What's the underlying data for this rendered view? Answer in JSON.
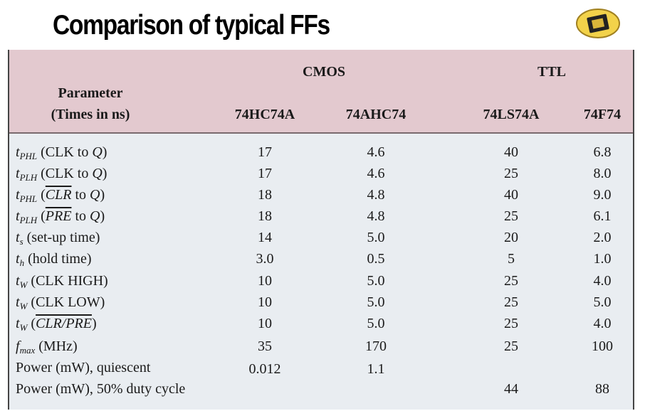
{
  "title": "Comparison of typical FFs",
  "table": {
    "group_headers": [
      {
        "label": "CMOS",
        "span": 2
      },
      {
        "label": "TTL",
        "span": 2
      }
    ],
    "parameter_header": [
      "Parameter",
      "(Times in ns)"
    ],
    "columns": [
      "74HC74A",
      "74AHC74",
      "74LS74A",
      "74F74"
    ],
    "rows": [
      {
        "label": [
          {
            "t": "t",
            "style": "italic"
          },
          {
            "t": "PHL",
            "style": "sub"
          },
          {
            "t": " (CLK to "
          },
          {
            "t": "Q",
            "style": "italic"
          },
          {
            "t": ")"
          }
        ],
        "cells": [
          "17",
          "4.6",
          "40",
          "6.8"
        ]
      },
      {
        "label": [
          {
            "t": "t",
            "style": "italic"
          },
          {
            "t": "PLH",
            "style": "sub"
          },
          {
            "t": " (CLK to "
          },
          {
            "t": "Q",
            "style": "italic"
          },
          {
            "t": ")"
          }
        ],
        "cells": [
          "17",
          "4.6",
          "25",
          "8.0"
        ]
      },
      {
        "label": [
          {
            "t": "t",
            "style": "italic"
          },
          {
            "t": "PHL",
            "style": "sub"
          },
          {
            "t": " ("
          },
          {
            "t": "CLR",
            "style": "over"
          },
          {
            "t": " to "
          },
          {
            "t": "Q",
            "style": "italic"
          },
          {
            "t": ")"
          }
        ],
        "cells": [
          "18",
          "4.8",
          "40",
          "9.0"
        ]
      },
      {
        "label": [
          {
            "t": "t",
            "style": "italic"
          },
          {
            "t": "PLH",
            "style": "sub"
          },
          {
            "t": " ("
          },
          {
            "t": "PRE",
            "style": "over"
          },
          {
            "t": " to "
          },
          {
            "t": "Q",
            "style": "italic"
          },
          {
            "t": ")"
          }
        ],
        "cells": [
          "18",
          "4.8",
          "25",
          "6.1"
        ]
      },
      {
        "label": [
          {
            "t": "t",
            "style": "italic"
          },
          {
            "t": "s",
            "style": "sub"
          },
          {
            "t": " (set-up time)"
          }
        ],
        "cells": [
          "14",
          "5.0",
          "20",
          "2.0"
        ]
      },
      {
        "label": [
          {
            "t": "t",
            "style": "italic"
          },
          {
            "t": "h",
            "style": "sub"
          },
          {
            "t": " (hold time)"
          }
        ],
        "cells": [
          "3.0",
          "0.5",
          "5",
          "1.0"
        ]
      },
      {
        "label": [
          {
            "t": "t",
            "style": "italic"
          },
          {
            "t": "W",
            "style": "sub"
          },
          {
            "t": " (CLK HIGH)"
          }
        ],
        "cells": [
          "10",
          "5.0",
          "25",
          "4.0"
        ]
      },
      {
        "label": [
          {
            "t": "t",
            "style": "italic"
          },
          {
            "t": "W",
            "style": "sub"
          },
          {
            "t": " (CLK LOW)"
          }
        ],
        "cells": [
          "10",
          "5.0",
          "25",
          "5.0"
        ]
      },
      {
        "label": [
          {
            "t": "t",
            "style": "italic"
          },
          {
            "t": "W",
            "style": "sub"
          },
          {
            "t": " ("
          },
          {
            "t": "CLR/PRE",
            "style": "over"
          },
          {
            "t": ")"
          }
        ],
        "cells": [
          "10",
          "5.0",
          "25",
          "4.0"
        ]
      },
      {
        "label": [
          {
            "t": "f",
            "style": "italic"
          },
          {
            "t": "max",
            "style": "sub"
          },
          {
            "t": " (MHz)"
          }
        ],
        "cells": [
          "35",
          "170",
          "25",
          "100"
        ]
      },
      {
        "label": [
          {
            "t": "Power (mW), quiescent"
          }
        ],
        "cells": [
          "0.012",
          "1.1",
          null,
          null
        ]
      },
      {
        "label": [
          {
            "t": "Power (mW), 50% duty cycle"
          }
        ],
        "cells": [
          null,
          null,
          "44",
          "88"
        ]
      }
    ]
  }
}
